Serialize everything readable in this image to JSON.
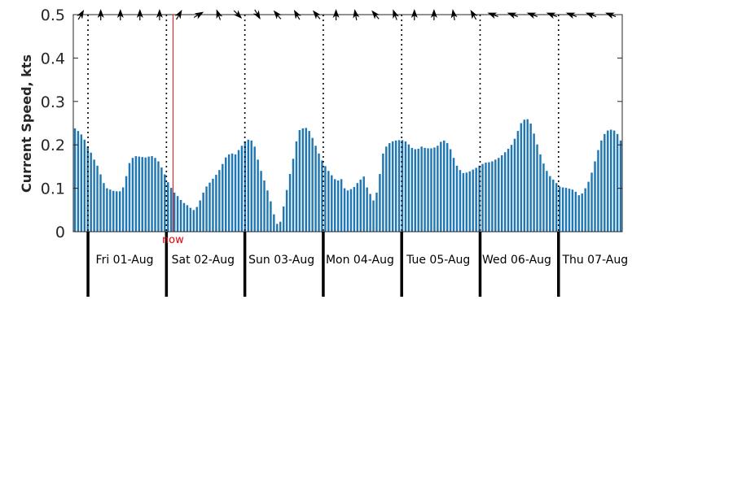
{
  "chart_data": {
    "type": "bar",
    "title": "",
    "xlabel": "",
    "ylabel": "Current Speed, kts",
    "ylim": [
      0,
      0.5
    ],
    "yticks": [
      "0",
      "0.1",
      "0.2",
      "0.3",
      "0.4",
      "0.5"
    ],
    "bar_color": "#1f77b4",
    "now_color": "#e8000b",
    "now_label": "now",
    "now_hour": 26,
    "x_hours_total": 168,
    "x_start_hour": -4.5,
    "day_boundaries_hours": [
      0,
      24,
      48,
      72,
      96,
      120,
      144
    ],
    "day_labels": [
      "Fri 01-Aug",
      "Sat 02-Aug",
      "Sun 03-Aug",
      "Mon 04-Aug",
      "Tue 05-Aug",
      "Wed 06-Aug",
      "Thu 07-Aug"
    ],
    "series": [
      {
        "values": [
          0.238,
          0.232,
          0.224,
          0.212,
          0.196,
          0.182,
          0.166,
          0.152,
          0.132,
          0.112,
          0.1,
          0.097,
          0.094,
          0.093,
          0.093,
          0.102,
          0.128,
          0.158,
          0.17,
          0.174,
          0.173,
          0.172,
          0.171,
          0.173,
          0.174,
          0.17,
          0.162,
          0.148,
          0.132,
          0.114,
          0.101,
          0.09,
          0.082,
          0.073,
          0.066,
          0.061,
          0.055,
          0.05,
          0.057,
          0.072,
          0.09,
          0.104,
          0.113,
          0.122,
          0.131,
          0.142,
          0.156,
          0.171,
          0.178,
          0.18,
          0.178,
          0.188,
          0.198,
          0.208,
          0.212,
          0.21,
          0.196,
          0.166,
          0.14,
          0.118,
          0.095,
          0.07,
          0.04,
          0.018,
          0.023,
          0.058,
          0.096,
          0.133,
          0.168,
          0.208,
          0.234,
          0.238,
          0.239,
          0.232,
          0.216,
          0.198,
          0.18,
          0.164,
          0.151,
          0.14,
          0.13,
          0.121,
          0.118,
          0.121,
          0.1,
          0.095,
          0.098,
          0.103,
          0.112,
          0.12,
          0.127,
          0.102,
          0.087,
          0.072,
          0.09,
          0.133,
          0.18,
          0.196,
          0.204,
          0.208,
          0.21,
          0.211,
          0.211,
          0.208,
          0.201,
          0.193,
          0.19,
          0.191,
          0.196,
          0.193,
          0.192,
          0.192,
          0.194,
          0.198,
          0.207,
          0.21,
          0.204,
          0.19,
          0.17,
          0.152,
          0.142,
          0.135,
          0.136,
          0.139,
          0.143,
          0.147,
          0.152,
          0.156,
          0.159,
          0.16,
          0.162,
          0.166,
          0.17,
          0.176,
          0.183,
          0.191,
          0.2,
          0.214,
          0.232,
          0.25,
          0.258,
          0.259,
          0.249,
          0.226,
          0.201,
          0.178,
          0.157,
          0.14,
          0.128,
          0.12,
          0.112,
          0.104,
          0.102,
          0.101,
          0.099,
          0.097,
          0.092,
          0.084,
          0.088,
          0.1,
          0.115,
          0.136,
          0.162,
          0.188,
          0.21,
          0.225,
          0.233,
          0.235,
          0.233,
          0.225,
          0.21
        ]
      }
    ],
    "direction_arrows_deg": [
      300,
      270,
      270,
      270,
      270,
      300,
      330,
      250,
      45,
      60,
      230,
      240,
      230,
      270,
      260,
      230,
      250,
      270,
      270,
      260,
      240,
      200,
      200,
      200,
      200,
      200,
      200,
      200
    ],
    "grid": false,
    "legend": "none"
  }
}
